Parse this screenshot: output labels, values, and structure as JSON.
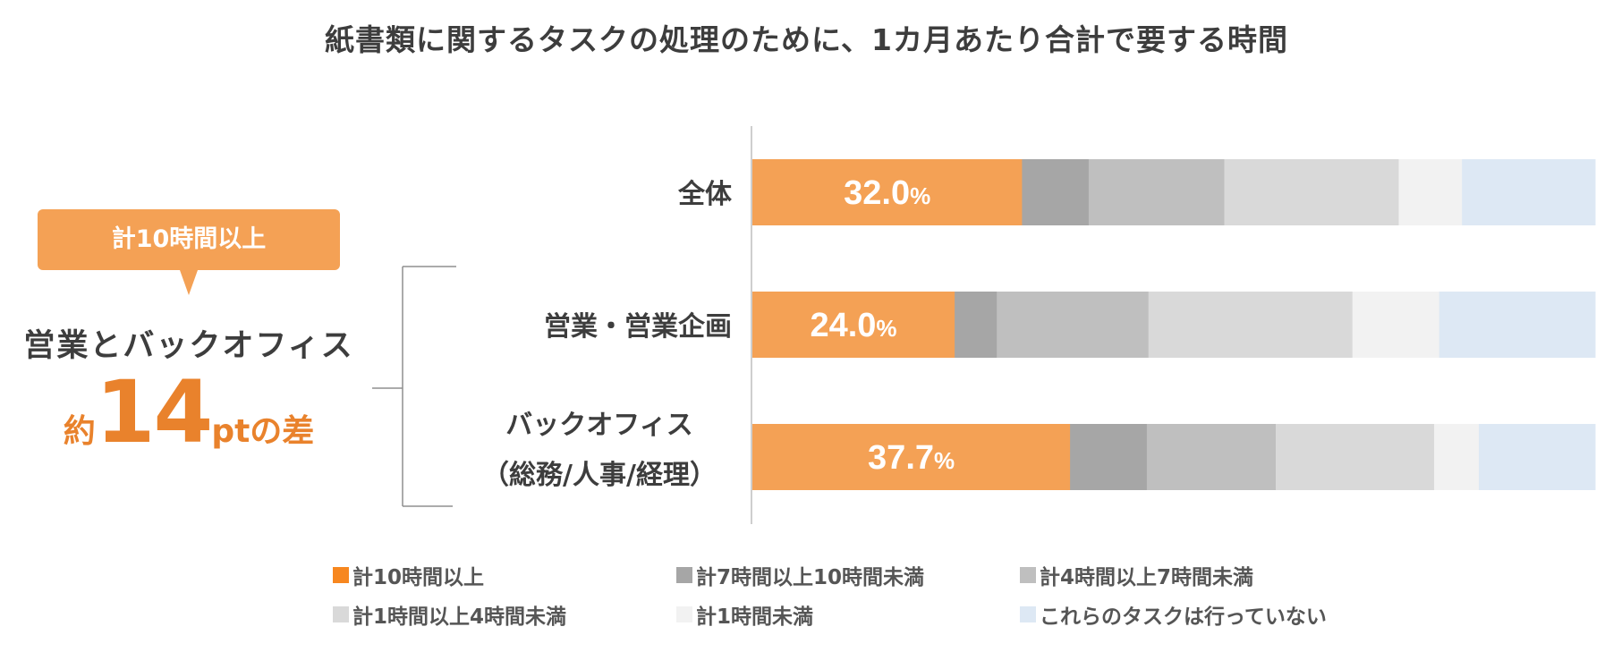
{
  "chart_data": {
    "type": "bar",
    "orientation": "horizontal",
    "stacked": true,
    "title": "紙書類に関するタスクの処理のために、1カ月あたり合計で要する時間",
    "categories": [
      "全体",
      "営業・営業企画",
      "バックオフィス（総務/人事/経理）"
    ],
    "series": [
      {
        "name": "計10時間以上",
        "color": "#f4a155",
        "values": [
          32.0,
          24.0,
          37.7
        ]
      },
      {
        "name": "計7時間以上10時間未満",
        "color": "#a6a6a6",
        "values": [
          7.9,
          5.0,
          9.1
        ]
      },
      {
        "name": "計4時間以上7時間未満",
        "color": "#bfbfbf",
        "values": [
          16.1,
          18.0,
          15.3
        ]
      },
      {
        "name": "計1時間以上4時間未満",
        "color": "#d9d9d9",
        "values": [
          20.7,
          24.2,
          18.8
        ]
      },
      {
        "name": "計1時間未満",
        "color": "#f2f2f2",
        "values": [
          7.5,
          10.3,
          5.3
        ]
      },
      {
        "name": "これらのタスクは行っていない",
        "color": "#dde8f4",
        "values": [
          15.8,
          18.5,
          13.8
        ]
      }
    ],
    "data_labels": [
      {
        "value": "32.0",
        "unit": "%"
      },
      {
        "value": "24.0",
        "unit": "%"
      },
      {
        "value": "37.7",
        "unit": "%"
      }
    ],
    "xlim": [
      0,
      100
    ],
    "grid": false,
    "legend_position": "bottom"
  },
  "category_display": {
    "all": "全体",
    "sales": "営業・営業企画",
    "back_line1": "バックオフィス",
    "back_line2": "（総務/人事/経理）"
  },
  "annotation": {
    "callout": "計10時間以上",
    "group": "営業とバックオフィス",
    "diff_prefix": "約",
    "diff_value": "14",
    "diff_unit": "ptの差"
  }
}
